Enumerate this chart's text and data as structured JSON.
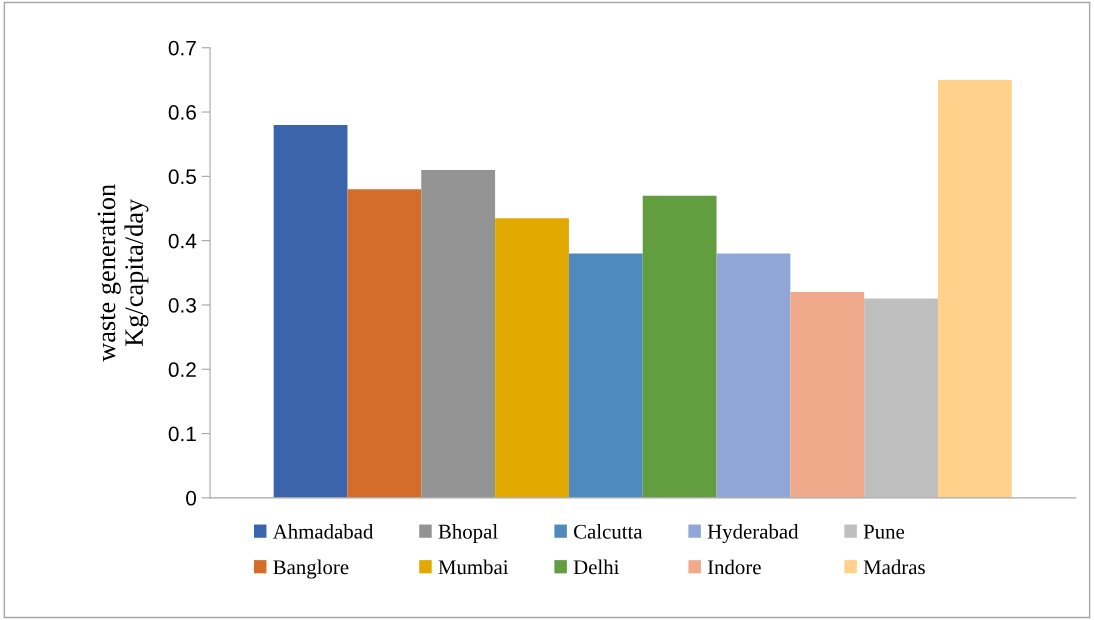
{
  "chart_data": {
    "type": "bar",
    "ylabel": "waste generation\nKg/capita/day",
    "categories": [
      null
    ],
    "ylim": [
      0,
      0.7
    ],
    "yticks": [
      {
        "value": 0,
        "label": "0"
      },
      0.1,
      0.2,
      0.3,
      0.4,
      0.5,
      0.6,
      0.7
    ],
    "grid": false,
    "legend": "bottom",
    "series": [
      {
        "name": "Ahmadabad",
        "color": "#3c64ad",
        "values": [
          0.58
        ]
      },
      {
        "name": "Banglore",
        "color": "#d46d2a",
        "values": [
          0.48
        ]
      },
      {
        "name": "Bhopal",
        "color": "#939393",
        "values": [
          0.51
        ]
      },
      {
        "name": "Mumbai",
        "color": "#e2aa00",
        "values": [
          0.435
        ]
      },
      {
        "name": "Calcutta",
        "color": "#4f8abe",
        "values": [
          0.38
        ]
      },
      {
        "name": "Delhi",
        "color": "#629d40",
        "values": [
          0.47
        ]
      },
      {
        "name": "Hyderabad",
        "color": "#8fa6d6",
        "values": [
          0.38
        ]
      },
      {
        "name": "Indore",
        "color": "#f0a98a",
        "values": [
          0.32
        ]
      },
      {
        "name": "Pune",
        "color": "#bfbfbf",
        "values": [
          0.31
        ]
      },
      {
        "name": "Madras",
        "color": "#ffd18a",
        "values": [
          0.65
        ]
      }
    ]
  }
}
